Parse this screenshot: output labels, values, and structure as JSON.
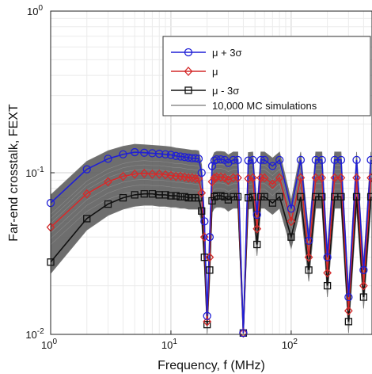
{
  "chart_data": {
    "type": "line",
    "xlabel": "Frequency, f (MHz)",
    "ylabel": "Far-end crosstalk, FEXT",
    "xscale": "log",
    "yscale": "log",
    "xlim": [
      1,
      470
    ],
    "ylim": [
      0.01,
      1
    ],
    "grid": true,
    "legend_position": "top-right",
    "x_tick_labels": [
      {
        "value": 1,
        "base": "10",
        "exp": "0"
      },
      {
        "value": 10,
        "base": "10",
        "exp": "1"
      },
      {
        "value": 100,
        "base": "10",
        "exp": "2"
      }
    ],
    "y_tick_labels": [
      {
        "value": 0.01,
        "base": "10",
        "exp": "-2"
      },
      {
        "value": 0.1,
        "base": "10",
        "exp": "-1"
      },
      {
        "value": 1,
        "base": "10",
        "exp": "0"
      }
    ],
    "series": [
      {
        "name": "μ + 3σ",
        "color": "#1f1fd6",
        "marker": "circle",
        "x": [
          1,
          2,
          3,
          4,
          5,
          6,
          7,
          8,
          9,
          10,
          11,
          12,
          13,
          14,
          15,
          16,
          17,
          18,
          19,
          20,
          21,
          22,
          23,
          24,
          26,
          28,
          30,
          33,
          36,
          40,
          44,
          48,
          52,
          56,
          60,
          70,
          80,
          100,
          120,
          140,
          160,
          180,
          200,
          230,
          260,
          300,
          350,
          400,
          460
        ],
        "y": [
          0.065,
          0.105,
          0.122,
          0.13,
          0.134,
          0.133,
          0.132,
          0.131,
          0.13,
          0.129,
          0.127,
          0.126,
          0.125,
          0.124,
          0.123,
          0.123,
          0.122,
          0.1,
          0.05,
          0.013,
          0.04,
          0.11,
          0.119,
          0.121,
          0.121,
          0.12,
          0.115,
          0.12,
          0.12,
          0.0102,
          0.119,
          0.12,
          0.055,
          0.12,
          0.12,
          0.11,
          0.12,
          0.06,
          0.12,
          0.038,
          0.12,
          0.12,
          0.03,
          0.12,
          0.12,
          0.017,
          0.12,
          0.025,
          0.12
        ]
      },
      {
        "name": "μ",
        "color": "#d42a2a",
        "marker": "diamond",
        "x": [
          1,
          2,
          3,
          4,
          5,
          6,
          7,
          8,
          9,
          10,
          11,
          12,
          13,
          14,
          15,
          16,
          17,
          18,
          19,
          20,
          21,
          22,
          23,
          24,
          26,
          28,
          30,
          33,
          36,
          40,
          44,
          48,
          52,
          56,
          60,
          70,
          80,
          100,
          120,
          140,
          160,
          180,
          200,
          230,
          260,
          300,
          350,
          400,
          460
        ],
        "y": [
          0.046,
          0.074,
          0.088,
          0.095,
          0.098,
          0.099,
          0.098,
          0.098,
          0.097,
          0.096,
          0.095,
          0.095,
          0.094,
          0.093,
          0.093,
          0.092,
          0.092,
          0.075,
          0.04,
          0.012,
          0.03,
          0.088,
          0.093,
          0.094,
          0.094,
          0.093,
          0.09,
          0.093,
          0.093,
          0.0102,
          0.092,
          0.093,
          0.045,
          0.093,
          0.093,
          0.085,
          0.093,
          0.05,
          0.093,
          0.03,
          0.093,
          0.093,
          0.024,
          0.093,
          0.093,
          0.014,
          0.093,
          0.02,
          0.093
        ]
      },
      {
        "name": "μ - 3σ",
        "color": "#111111",
        "marker": "square",
        "x": [
          1,
          2,
          3,
          4,
          5,
          6,
          7,
          8,
          9,
          10,
          11,
          12,
          13,
          14,
          15,
          16,
          17,
          18,
          19,
          20,
          21,
          22,
          23,
          24,
          26,
          28,
          30,
          33,
          36,
          40,
          44,
          48,
          52,
          56,
          60,
          70,
          80,
          100,
          120,
          140,
          160,
          180,
          200,
          230,
          260,
          300,
          350,
          400,
          460
        ],
        "y": [
          0.028,
          0.052,
          0.064,
          0.07,
          0.073,
          0.074,
          0.074,
          0.073,
          0.073,
          0.072,
          0.072,
          0.071,
          0.071,
          0.07,
          0.07,
          0.07,
          0.07,
          0.058,
          0.03,
          0.0115,
          0.025,
          0.067,
          0.071,
          0.072,
          0.072,
          0.071,
          0.068,
          0.071,
          0.071,
          0.0102,
          0.07,
          0.071,
          0.036,
          0.071,
          0.071,
          0.065,
          0.071,
          0.04,
          0.071,
          0.025,
          0.071,
          0.071,
          0.02,
          0.071,
          0.071,
          0.012,
          0.071,
          0.017,
          0.071
        ]
      },
      {
        "name": "10,000 MC simulations",
        "color": "#555555",
        "marker": "none"
      }
    ]
  }
}
